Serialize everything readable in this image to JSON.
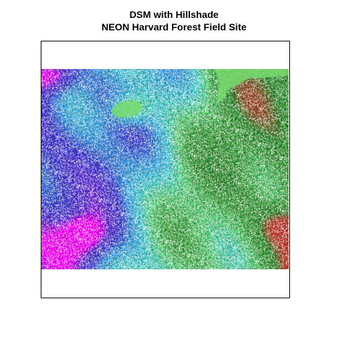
{
  "plot": {
    "title_line1": "DSM with Hillshade",
    "title_line2": "NEON Harvard Forest Field Site"
  },
  "raster": {
    "layer": "DSM with Hillshade",
    "palette": [
      "#ff00ff",
      "#5b2fd6",
      "#3f3fd0",
      "#3aa0e0",
      "#4fd0d0",
      "#5fd07a",
      "#3fa13f",
      "#2e8b2e",
      "#c0392b"
    ],
    "hillshade_overlay": "white speckle",
    "extent_shown": "full frame"
  }
}
